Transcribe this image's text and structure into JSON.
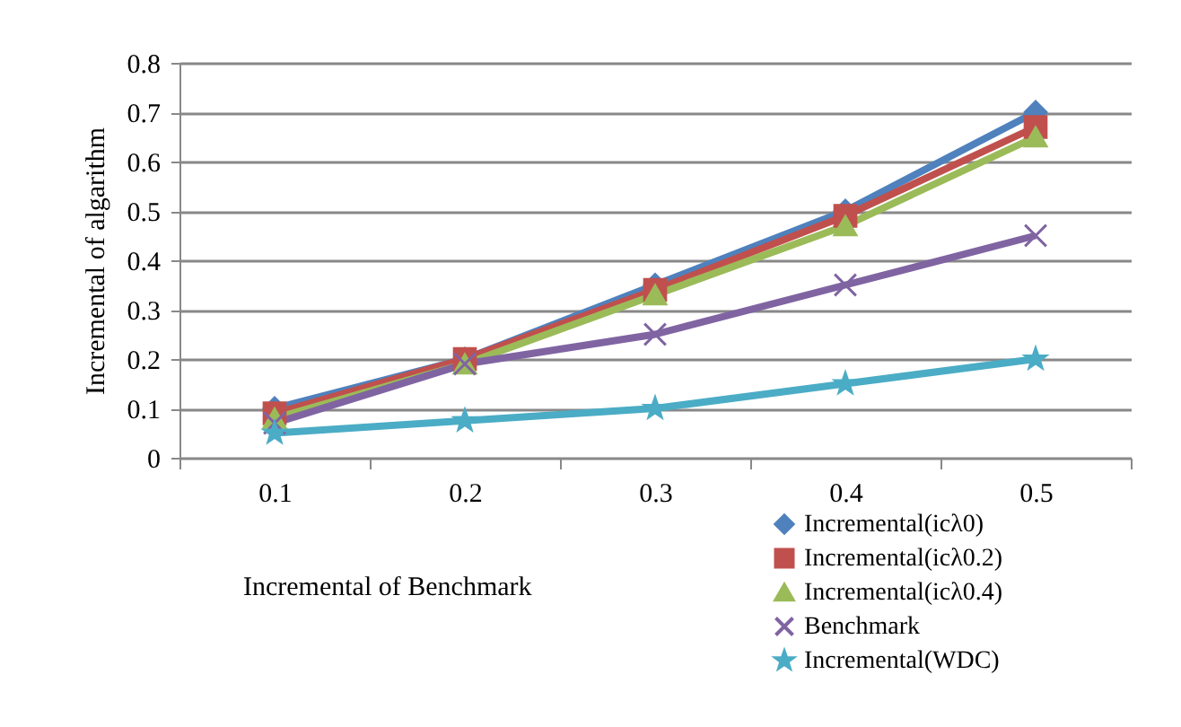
{
  "chart_data": {
    "type": "line",
    "xlabel": "Incremental of  Benchmark",
    "ylabel": "Incremental of algarithm",
    "categories": [
      "0.1",
      "0.2",
      "0.3",
      "0.4",
      "0.5"
    ],
    "ylim": [
      0,
      0.8
    ],
    "yticks": [
      0,
      0.1,
      0.2,
      0.3,
      0.4,
      0.5,
      0.6,
      0.7,
      0.8
    ],
    "grid": "y",
    "legend": "bottom right",
    "series": [
      {
        "name": "Incremental(icλ0)",
        "color": "#4f81bd",
        "marker": "diamond",
        "values": [
          0.1,
          0.2,
          0.35,
          0.5,
          0.7
        ]
      },
      {
        "name": "Incremental(icλ0.2)",
        "color": "#c0504d",
        "marker": "square",
        "values": [
          0.09,
          0.2,
          0.34,
          0.49,
          0.67
        ]
      },
      {
        "name": "Incremental(icλ0.4)",
        "color": "#9bbb59",
        "marker": "triangle",
        "values": [
          0.08,
          0.19,
          0.33,
          0.47,
          0.65
        ]
      },
      {
        "name": "Benchmark",
        "color": "#8064a2",
        "marker": "cross",
        "values": [
          0.07,
          0.19,
          0.25,
          0.35,
          0.45
        ]
      },
      {
        "name": "Incremental(WDC)",
        "color": "#4bacc6",
        "marker": "star",
        "values": [
          0.05,
          0.075,
          0.1,
          0.15,
          0.2
        ]
      }
    ]
  }
}
